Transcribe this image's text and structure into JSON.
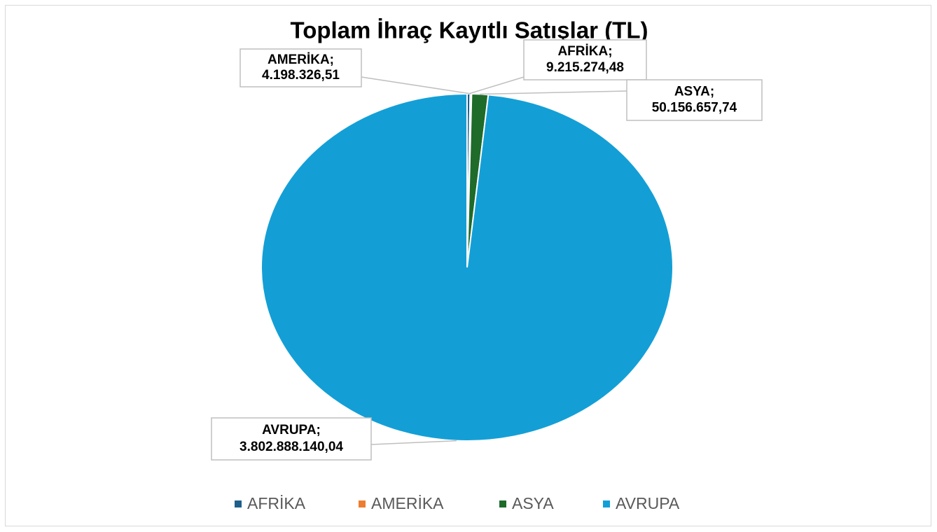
{
  "chart_data": {
    "type": "pie",
    "title": "Toplam İhraç Kayıtlı Satışlar (TL)",
    "categories": [
      "AFRİKA",
      "AMERİKA",
      "ASYA",
      "AVRUPA"
    ],
    "values": [
      9215274.48,
      4198326.51,
      50156657.74,
      3802888140.04
    ],
    "value_labels": [
      "9.215.274,48",
      "4.198.326,51",
      "50.156.657,74",
      "3.802.888.140,04"
    ],
    "label_separator": ";",
    "colors": [
      "#1f5f8b",
      "#ed7d31",
      "#1e6b2a",
      "#139fd6"
    ],
    "legend": "bottom"
  }
}
